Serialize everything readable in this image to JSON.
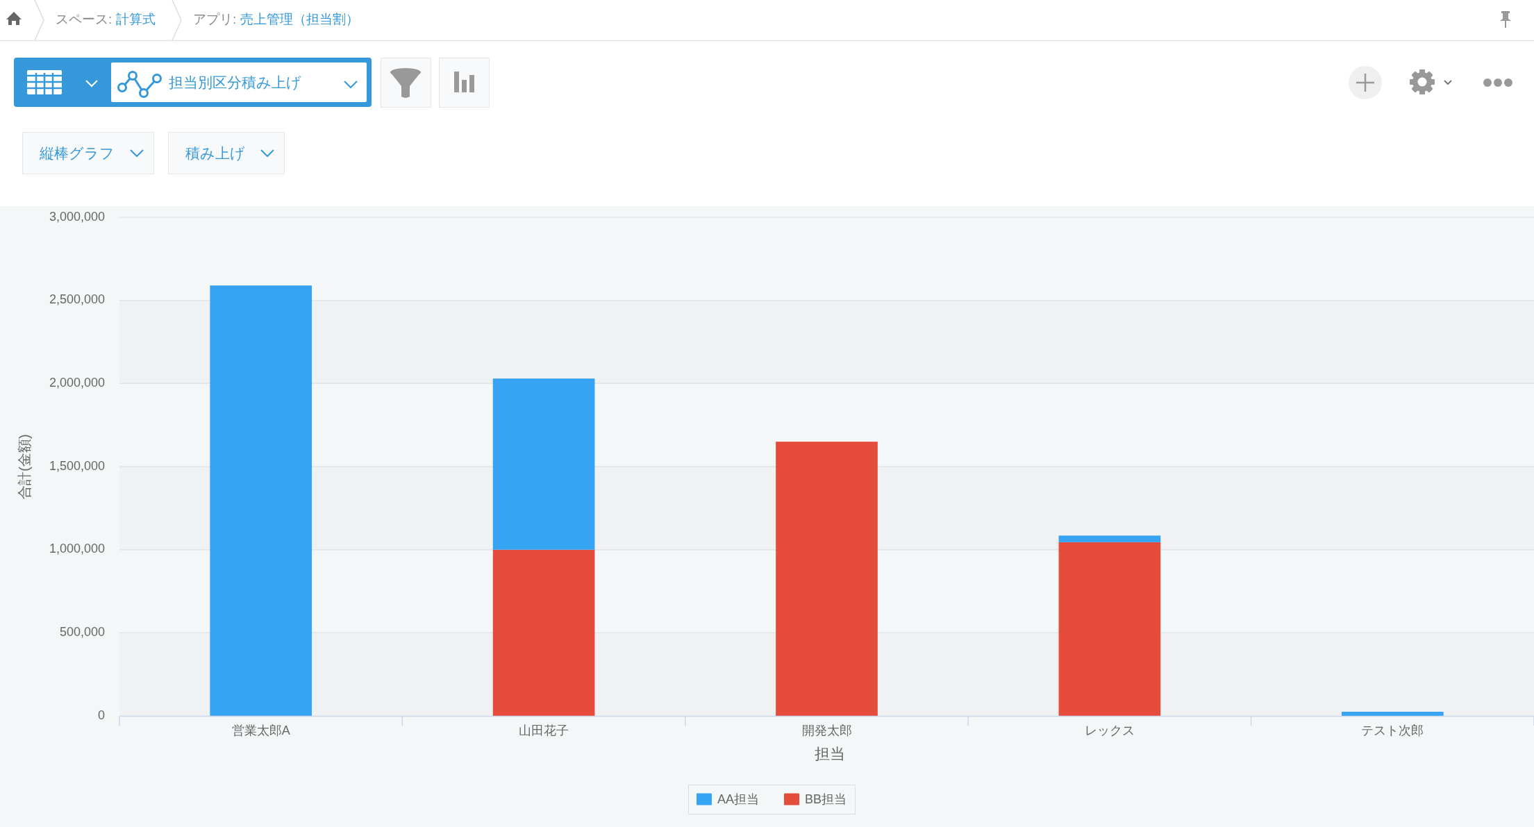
{
  "chart_data": {
    "type": "bar",
    "title": "担当別区分積み上げ",
    "xlabel": "担当",
    "ylabel": "合計(金額)",
    "categories": [
      "営業太郎A",
      "山田花子",
      "開発太郎",
      "レックス",
      "テスト次郎"
    ],
    "stacked": true,
    "series": [
      {
        "name": "BB担当",
        "color": "#e64c3c",
        "values": [
          null,
          1000000,
          1650000,
          1045000,
          null
        ]
      },
      {
        "name": "AA担当",
        "color": "#36a3f3",
        "values": [
          2590000,
          1030000,
          null,
          40000,
          25000
        ]
      }
    ],
    "ylim": [
      0,
      3000000
    ],
    "yticks": [
      {
        "value": 0,
        "label": "0"
      },
      {
        "value": 500000,
        "label": "500,000"
      },
      {
        "value": 1000000,
        "label": "1,000,000"
      },
      {
        "value": 1500000,
        "label": "1,500,000"
      },
      {
        "value": 2000000,
        "label": "2,000,000"
      },
      {
        "value": 2500000,
        "label": "2,500,000"
      },
      {
        "value": 3000000,
        "label": "3,000,000"
      }
    ],
    "grid": "y",
    "legend": "bottom",
    "bands": [
      {
        "axis": "y",
        "from": 0,
        "to": 500000,
        "color": "#eff1f3"
      },
      {
        "axis": "y",
        "from": 1000000,
        "to": 1500000,
        "color": "#eff1f3"
      },
      {
        "axis": "y",
        "from": 2000000,
        "to": 2500000,
        "color": "#eff1f3"
      }
    ],
    "annotations": [
      "スペース: 計算式",
      "アプリ: 売上管理（担当割）",
      "縦棒グラフ",
      "積み上げ"
    ]
  }
}
